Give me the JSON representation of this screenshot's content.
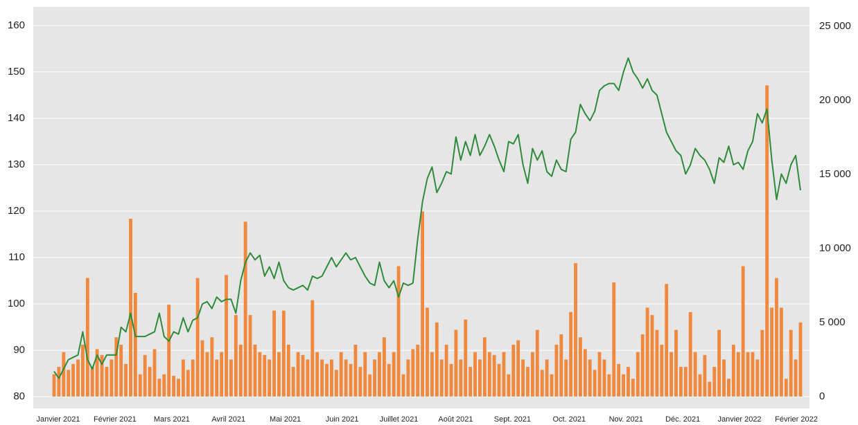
{
  "chart_data": {
    "type": "bar-line",
    "xticks": [
      "Janvier 2021",
      "Février 2021",
      "Mars 2021",
      "Avril 2021",
      "Mai 2021",
      "Juin 2021",
      "Juillet 2021",
      "Août 2021",
      "Sept. 2021",
      "Oct. 2021",
      "Nov. 2021",
      "Déc. 2021",
      "Janvier 2022",
      "Février 2022"
    ],
    "ylim": [
      77.5,
      164
    ],
    "yticks": [
      80,
      90,
      100,
      110,
      120,
      130,
      140,
      150,
      160
    ],
    "y2lim": [
      -800,
      26300
    ],
    "y2ticks": [
      0,
      {
        "value": 5000,
        "label": "5 000"
      },
      {
        "value": 10000,
        "label": "10 000"
      },
      {
        "value": 15000,
        "label": "15 000"
      },
      {
        "value": 20000,
        "label": "20 000"
      },
      {
        "value": 25000,
        "label": "25 000"
      }
    ],
    "grid": true,
    "series": [
      {
        "type": "bar",
        "axis": "y2",
        "color": "#f0883e",
        "values": [
          1500,
          2000,
          3000,
          1800,
          2200,
          2500,
          3500,
          8000,
          2000,
          3200,
          2800,
          2000,
          2500,
          4000,
          3500,
          2200,
          12000,
          7000,
          1500,
          2800,
          2000,
          3200,
          1200,
          1500,
          6200,
          1400,
          1200,
          2500,
          1800,
          2500,
          8000,
          3800,
          3000,
          4000,
          2500,
          3000,
          8200,
          2500,
          5500,
          3500,
          11800,
          5500,
          3500,
          3000,
          2800,
          2500,
          5800,
          3000,
          5800,
          3500,
          2000,
          3000,
          2800,
          2500,
          6500,
          3000,
          2500,
          2200,
          2500,
          1800,
          3000,
          2500,
          2200,
          3500,
          2000,
          3000,
          1500,
          2500,
          3000,
          4000,
          2200,
          3000,
          8800,
          1500,
          2500,
          3200,
          3500,
          12500,
          6000,
          3000,
          5000,
          2500,
          3500,
          2200,
          4500,
          2500,
          5200,
          2000,
          3000,
          2500,
          4000,
          3000,
          2800,
          2200,
          3000,
          1500,
          3500,
          3800,
          2500,
          2000,
          3000,
          4500,
          1800,
          2500,
          1500,
          3500,
          4200,
          2500,
          5700,
          9000,
          4000,
          3200,
          2500,
          1800,
          3000,
          2500,
          1500,
          7700,
          2200,
          1500,
          2000,
          1200,
          3000,
          4200,
          6000,
          5500,
          4500,
          3500,
          7600,
          3000,
          4500,
          2000,
          2000,
          5700,
          3000,
          1500,
          2800,
          1000,
          2000,
          4500,
          2500,
          1200,
          3500,
          3000,
          8800,
          3000,
          3000,
          2500,
          4500,
          21000,
          6000,
          8000,
          6000,
          1200,
          4500,
          2500,
          5000
        ]
      },
      {
        "type": "line",
        "axis": "y",
        "color": "#2e8b3a",
        "values": [
          85.5,
          84,
          86,
          88,
          88.5,
          89,
          94,
          88,
          86,
          89,
          87,
          89,
          89,
          89,
          95,
          94,
          98,
          93,
          93,
          93,
          93.5,
          94,
          98,
          93,
          92,
          94,
          93.5,
          97,
          94,
          96.5,
          97,
          100,
          100.5,
          99,
          101.5,
          100.5,
          101,
          101,
          98,
          105,
          109,
          111,
          109.5,
          110.5,
          106,
          108,
          105.5,
          109,
          105,
          103.5,
          103,
          103.5,
          104,
          103,
          106,
          105.5,
          106,
          108,
          110,
          108,
          109.5,
          111,
          109.5,
          110,
          108,
          106,
          104.5,
          104,
          109,
          105,
          103.5,
          105,
          101.5,
          104.5,
          104,
          104.5,
          114,
          122,
          127,
          129.5,
          124,
          126,
          128.5,
          128,
          136,
          131,
          135,
          132,
          136.5,
          132,
          134,
          136.5,
          134,
          131,
          128.5,
          135,
          134.5,
          136.5,
          130,
          126,
          133.5,
          131,
          133,
          128.5,
          127.5,
          131,
          129,
          128.5,
          135.5,
          137,
          143,
          141,
          139.5,
          141.5,
          146,
          147,
          147.5,
          147.5,
          146,
          150,
          153,
          150,
          148.5,
          146.5,
          148.5,
          146,
          145,
          141,
          137,
          135,
          133,
          132,
          128,
          130,
          133.5,
          132,
          131,
          129,
          126,
          131.5,
          130.5,
          134,
          130,
          130.5,
          129,
          133,
          135,
          141,
          139,
          142,
          131,
          122.5,
          128,
          126,
          130,
          132,
          124.5
        ]
      }
    ]
  }
}
